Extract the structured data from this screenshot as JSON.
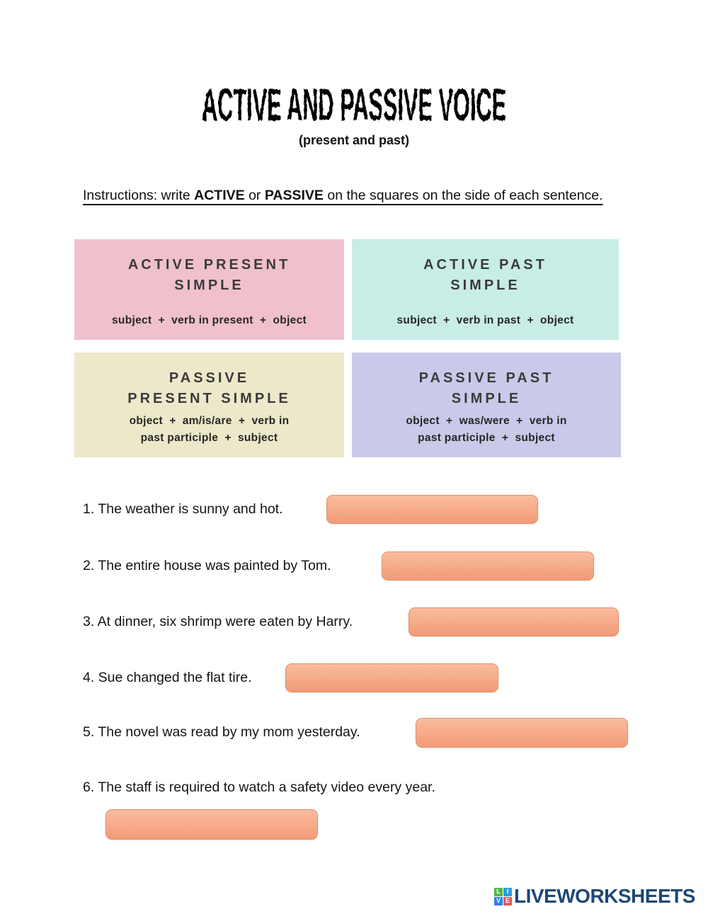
{
  "page": {
    "title": "ACTIVE AND PASSIVE VOICE",
    "subtitle": "(present and past)"
  },
  "instructions": {
    "prefix": "Instructions: write ",
    "keyword1": "ACTIVE",
    "connector": " or ",
    "keyword2": "PASSIVE",
    "suffix": " on the squares on the side of each sentence."
  },
  "voice_boxes": [
    {
      "title": "ACTIVE PRESENT\nSIMPLE",
      "formula": "subject  +  verb in present  +  object",
      "color": "#f0c1cd"
    },
    {
      "title": "ACTIVE PAST\nSIMPLE",
      "formula": "subject  +  verb in past  +  object",
      "color": "#c7ede6"
    },
    {
      "title": "PASSIVE\nPRESENT SIMPLE",
      "formula": "object  +  am/is/are  +  verb in\npast participle  +  subject",
      "color": "#ece8c9"
    },
    {
      "title": "PASSIVE PAST\nSIMPLE",
      "formula": "object  +  was/were  +  verb in\npast participle  +  subject",
      "color": "#c9cae9"
    }
  ],
  "exercise": {
    "sentences": [
      {
        "text": "1. The weather is sunny and hot."
      },
      {
        "text": "2. The entire house was painted by Tom."
      },
      {
        "text": "3. At dinner, six shrimp were eaten by Harry."
      },
      {
        "text": "4. Sue changed the flat tire."
      },
      {
        "text": "5. The novel was read by my mom yesterday."
      },
      {
        "text": "6. The staff is required to watch a safety video every year."
      }
    ],
    "answer_value": ""
  },
  "answer_box": {
    "fill_top": "#f9bd9f",
    "fill_bottom": "#f39a77",
    "border": "#dd9268"
  },
  "footer": {
    "brand": "LIVEWORKSHEETS",
    "brand_color": "#1d4875",
    "blocks": [
      {
        "letter": "L",
        "color": "#56b54a"
      },
      {
        "letter": "I",
        "color": "#2d9cdb"
      },
      {
        "letter": "V",
        "color": "#2f80ed"
      },
      {
        "letter": "E",
        "color": "#eb5757"
      }
    ]
  }
}
